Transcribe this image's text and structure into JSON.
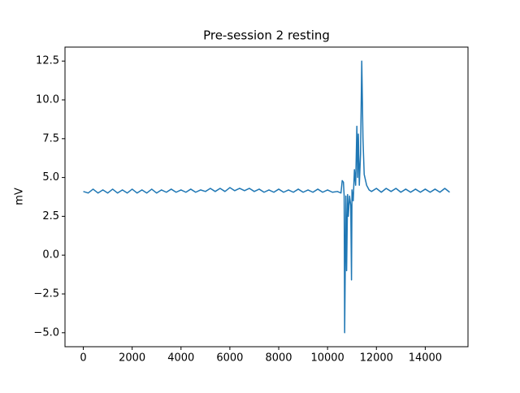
{
  "chart_data": {
    "type": "line",
    "title": "Pre-session 2 resting",
    "ylabel": "mV",
    "color": "#1f77b4",
    "x": [
      0,
      200,
      400,
      600,
      800,
      1000,
      1200,
      1400,
      1600,
      1800,
      2000,
      2200,
      2400,
      2600,
      2800,
      3000,
      3200,
      3400,
      3600,
      3800,
      4000,
      4200,
      4400,
      4600,
      4800,
      5000,
      5200,
      5400,
      5600,
      5800,
      6000,
      6200,
      6400,
      6600,
      6800,
      7000,
      7200,
      7400,
      7600,
      7800,
      8000,
      8200,
      8400,
      8600,
      8800,
      9000,
      9200,
      9400,
      9600,
      9800,
      10000,
      10200,
      10400,
      10550,
      10600,
      10650,
      10680,
      10700,
      10720,
      10750,
      10780,
      10820,
      10850,
      10900,
      10950,
      10980,
      11000,
      11050,
      11100,
      11150,
      11200,
      11230,
      11260,
      11300,
      11350,
      11400,
      11450,
      11500,
      11600,
      11700,
      11800,
      12000,
      12200,
      12400,
      12600,
      12800,
      13000,
      13200,
      13400,
      13600,
      13800,
      14000,
      14200,
      14400,
      14600,
      14800,
      14999
    ],
    "values": [
      4.1,
      4.0,
      4.25,
      4.0,
      4.2,
      4.0,
      4.25,
      4.0,
      4.2,
      4.0,
      4.25,
      4.0,
      4.2,
      4.0,
      4.25,
      4.0,
      4.2,
      4.05,
      4.25,
      4.05,
      4.2,
      4.05,
      4.25,
      4.05,
      4.2,
      4.1,
      4.3,
      4.1,
      4.3,
      4.1,
      4.35,
      4.15,
      4.3,
      4.15,
      4.3,
      4.1,
      4.25,
      4.05,
      4.2,
      4.05,
      4.25,
      4.05,
      4.2,
      4.05,
      4.25,
      4.05,
      4.2,
      4.05,
      4.25,
      4.05,
      4.2,
      4.05,
      4.1,
      4.0,
      4.8,
      4.7,
      3.8,
      -5.0,
      -1.5,
      3.8,
      -1.0,
      3.9,
      2.5,
      3.8,
      3.2,
      -1.6,
      4.2,
      3.5,
      5.5,
      4.5,
      8.3,
      5.0,
      7.8,
      4.5,
      6.5,
      12.5,
      7.5,
      5.2,
      4.5,
      4.2,
      4.1,
      4.3,
      4.05,
      4.3,
      4.1,
      4.3,
      4.05,
      4.25,
      4.05,
      4.25,
      4.05,
      4.25,
      4.05,
      4.25,
      4.05,
      4.3,
      4.05
    ],
    "xlim": [
      -750,
      15750
    ],
    "ylim": [
      -5.9,
      13.4
    ],
    "xticks": [
      0,
      2000,
      4000,
      6000,
      8000,
      10000,
      12000,
      14000
    ],
    "yticks": [
      {
        "value": -5,
        "label": "−5.0"
      },
      {
        "value": -2.5,
        "label": "−2.5"
      },
      {
        "value": 0,
        "label": "0.0"
      },
      2.5,
      {
        "value": 5,
        "label": "5.0"
      },
      7.5,
      {
        "value": 10,
        "label": "10.0"
      },
      12.5
    ]
  }
}
